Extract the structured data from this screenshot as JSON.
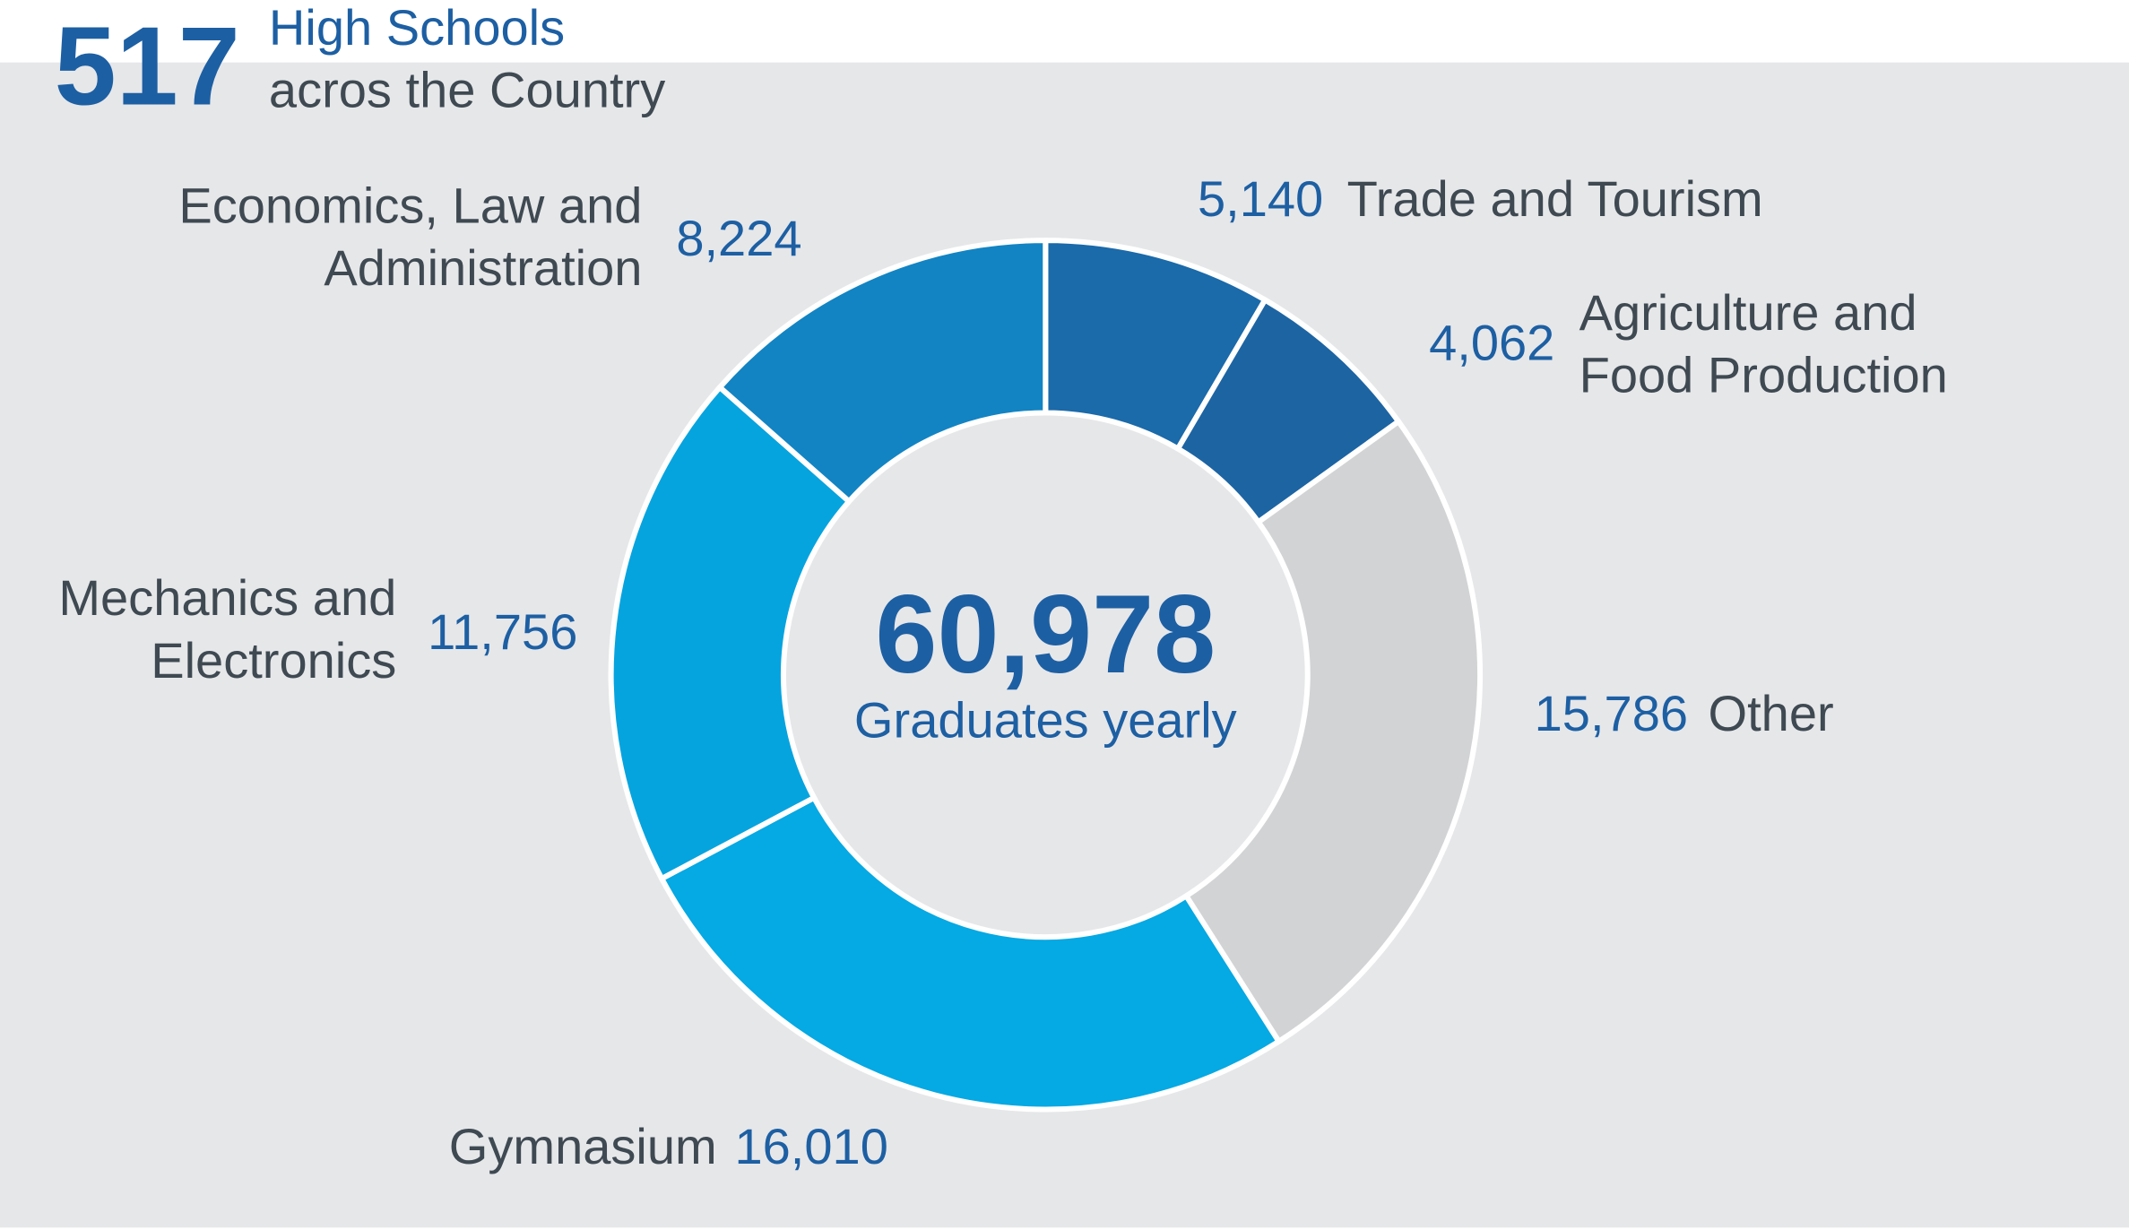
{
  "header": {
    "count": 517,
    "line1": "High Schools",
    "line2": "acros the Country"
  },
  "chart_data": {
    "type": "donut",
    "categories": [
      "Trade and Tourism",
      "Agriculture and Food Production",
      "Other",
      "Gymnasium",
      "Mechanics and Electronics",
      "Economics, Law and Administration"
    ],
    "values": [
      5140,
      4062,
      15786,
      16010,
      11756,
      8224
    ],
    "value_labels": [
      "5,140",
      "4,062",
      "15,786",
      "16,010",
      "11,756",
      "8,224"
    ],
    "colors": [
      "#1b6aaa",
      "#1d64a3",
      "#d2d3d5",
      "#05a9e3",
      "#06a4df",
      "#1284c3"
    ],
    "center_label": "60,978",
    "center_text": "Graduates yearly"
  }
}
